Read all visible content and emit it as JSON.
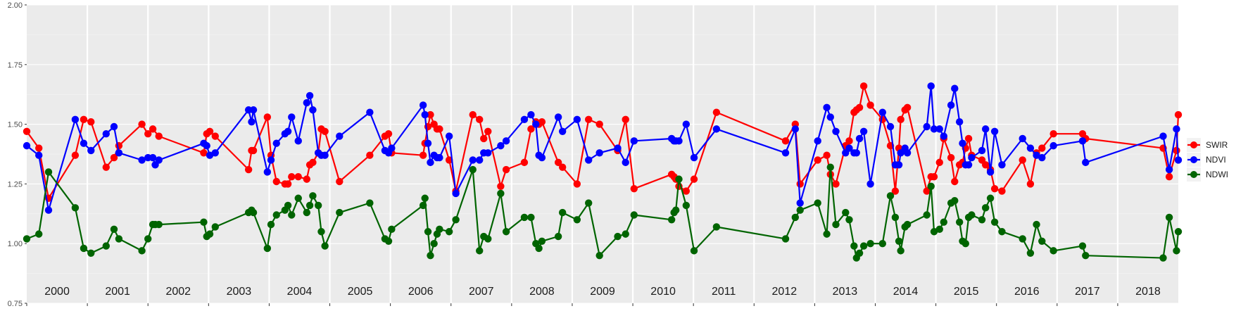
{
  "chart_data": {
    "type": "line",
    "title": "",
    "xlabel": "",
    "ylabel": "",
    "ylim": [
      0.75,
      2.0
    ],
    "xlim": [
      2000.0,
      2019.0
    ],
    "yticks": [
      "0.75",
      "1.00",
      "1.25",
      "1.50",
      "1.75",
      "2.00"
    ],
    "year_labels": [
      "2000",
      "2001",
      "2002",
      "2003",
      "2004",
      "2005",
      "2006",
      "2007",
      "2008",
      "2009",
      "2010",
      "2011",
      "2012",
      "2013",
      "2014",
      "2015",
      "2016",
      "2017",
      "2018"
    ],
    "grid": true,
    "legend_position": "right",
    "series": [
      {
        "name": "SWIR",
        "color": "#ff0000",
        "x": [
          2000.0,
          2000.2,
          2000.36,
          2000.8,
          2000.94,
          2001.06,
          2001.31,
          2001.44,
          2001.52,
          2001.9,
          2002.0,
          2002.08,
          2002.18,
          2002.92,
          2002.97,
          2003.02,
          2003.11,
          2003.66,
          2003.71,
          2003.74,
          2003.97,
          2004.03,
          2004.12,
          2004.26,
          2004.31,
          2004.37,
          2004.48,
          2004.62,
          2004.67,
          2004.72,
          2004.81,
          2004.86,
          2004.92,
          2005.16,
          2005.66,
          2005.91,
          2005.97,
          2006.02,
          2006.54,
          2006.57,
          2006.62,
          2006.66,
          2006.72,
          2006.77,
          2006.81,
          2006.97,
          2007.08,
          2007.36,
          2007.47,
          2007.54,
          2007.61,
          2007.82,
          2007.91,
          2008.21,
          2008.32,
          2008.4,
          2008.45,
          2008.5,
          2008.77,
          2008.84,
          2009.08,
          2009.27,
          2009.45,
          2009.75,
          2009.88,
          2010.02,
          2010.64,
          2010.68,
          2010.71,
          2010.76,
          2010.88,
          2011.01,
          2011.38,
          2012.52,
          2012.68,
          2012.76,
          2013.05,
          2013.2,
          2013.26,
          2013.35,
          2013.51,
          2013.57,
          2013.65,
          2013.69,
          2013.74,
          2013.81,
          2013.92,
          2014.12,
          2014.25,
          2014.33,
          2014.39,
          2014.42,
          2014.49,
          2014.53,
          2014.85,
          2014.92,
          2014.97,
          2015.06,
          2015.13,
          2015.25,
          2015.31,
          2015.39,
          2015.44,
          2015.49,
          2015.54,
          2015.59,
          2015.76,
          2015.82,
          2015.9,
          2015.97,
          2016.09,
          2016.43,
          2016.56,
          2016.66,
          2016.75,
          2016.94,
          2017.42,
          2017.47,
          2018.75,
          2018.85,
          2018.97,
          2019.0
        ],
        "y": [
          1.47,
          1.4,
          1.19,
          1.37,
          1.52,
          1.51,
          1.32,
          1.36,
          1.41,
          1.5,
          1.46,
          1.48,
          1.45,
          1.38,
          1.46,
          1.47,
          1.45,
          1.31,
          1.39,
          1.39,
          1.53,
          1.37,
          1.26,
          1.25,
          1.25,
          1.28,
          1.28,
          1.27,
          1.33,
          1.34,
          1.38,
          1.48,
          1.47,
          1.26,
          1.37,
          1.45,
          1.46,
          1.38,
          1.37,
          1.42,
          1.49,
          1.54,
          1.5,
          1.48,
          1.48,
          1.35,
          1.22,
          1.54,
          1.52,
          1.44,
          1.47,
          1.24,
          1.31,
          1.34,
          1.48,
          1.51,
          1.5,
          1.51,
          1.34,
          1.32,
          1.25,
          1.52,
          1.5,
          1.39,
          1.52,
          1.23,
          1.29,
          1.28,
          1.27,
          1.24,
          1.22,
          1.27,
          1.55,
          1.43,
          1.5,
          1.25,
          1.35,
          1.37,
          1.29,
          1.25,
          1.41,
          1.43,
          1.55,
          1.56,
          1.57,
          1.66,
          1.58,
          1.52,
          1.41,
          1.22,
          1.4,
          1.52,
          1.56,
          1.57,
          1.22,
          1.28,
          1.28,
          1.34,
          1.44,
          1.36,
          1.26,
          1.33,
          1.34,
          1.4,
          1.44,
          1.37,
          1.35,
          1.33,
          1.31,
          1.23,
          1.22,
          1.35,
          1.25,
          1.38,
          1.4,
          1.46,
          1.46,
          1.44,
          1.4,
          1.28,
          1.39,
          1.54
        ]
      },
      {
        "name": "NDVI",
        "color": "#0000ff",
        "x": [
          2000.0,
          2000.2,
          2000.36,
          2000.8,
          2000.94,
          2001.06,
          2001.31,
          2001.44,
          2001.52,
          2001.9,
          2002.0,
          2002.08,
          2002.12,
          2002.18,
          2002.92,
          2002.97,
          2003.02,
          2003.11,
          2003.66,
          2003.71,
          2003.74,
          2003.97,
          2004.03,
          2004.12,
          2004.26,
          2004.31,
          2004.37,
          2004.48,
          2004.62,
          2004.67,
          2004.72,
          2004.81,
          2004.86,
          2004.92,
          2005.16,
          2005.66,
          2005.91,
          2005.97,
          2006.02,
          2006.54,
          2006.57,
          2006.62,
          2006.66,
          2006.72,
          2006.77,
          2006.81,
          2006.97,
          2007.08,
          2007.36,
          2007.47,
          2007.54,
          2007.61,
          2007.82,
          2007.91,
          2008.21,
          2008.32,
          2008.4,
          2008.45,
          2008.5,
          2008.77,
          2008.84,
          2009.08,
          2009.27,
          2009.45,
          2009.75,
          2009.88,
          2010.02,
          2010.64,
          2010.68,
          2010.71,
          2010.76,
          2010.88,
          2011.01,
          2011.38,
          2012.52,
          2012.68,
          2012.76,
          2013.05,
          2013.2,
          2013.26,
          2013.35,
          2013.51,
          2013.57,
          2013.65,
          2013.69,
          2013.74,
          2013.81,
          2013.92,
          2014.12,
          2014.25,
          2014.33,
          2014.39,
          2014.42,
          2014.49,
          2014.53,
          2014.85,
          2014.92,
          2014.97,
          2015.06,
          2015.13,
          2015.25,
          2015.31,
          2015.39,
          2015.44,
          2015.49,
          2015.54,
          2015.59,
          2015.76,
          2015.82,
          2015.9,
          2015.97,
          2016.09,
          2016.43,
          2016.56,
          2016.66,
          2016.75,
          2016.94,
          2017.42,
          2017.47,
          2018.75,
          2018.85,
          2018.97,
          2019.0
        ],
        "y": [
          1.41,
          1.37,
          1.14,
          1.52,
          1.42,
          1.39,
          1.46,
          1.49,
          1.38,
          1.35,
          1.36,
          1.36,
          1.33,
          1.35,
          1.42,
          1.41,
          1.37,
          1.38,
          1.56,
          1.51,
          1.56,
          1.3,
          1.35,
          1.42,
          1.46,
          1.47,
          1.53,
          1.43,
          1.59,
          1.62,
          1.56,
          1.38,
          1.37,
          1.37,
          1.45,
          1.55,
          1.39,
          1.38,
          1.4,
          1.58,
          1.54,
          1.42,
          1.34,
          1.37,
          1.36,
          1.36,
          1.45,
          1.21,
          1.35,
          1.35,
          1.38,
          1.38,
          1.41,
          1.43,
          1.52,
          1.54,
          1.5,
          1.37,
          1.36,
          1.53,
          1.47,
          1.52,
          1.35,
          1.38,
          1.4,
          1.34,
          1.43,
          1.44,
          1.43,
          1.43,
          1.43,
          1.5,
          1.36,
          1.48,
          1.38,
          1.48,
          1.17,
          1.43,
          1.57,
          1.53,
          1.47,
          1.38,
          1.4,
          1.38,
          1.38,
          1.44,
          1.47,
          1.25,
          1.55,
          1.49,
          1.33,
          1.33,
          1.38,
          1.4,
          1.38,
          1.49,
          1.66,
          1.48,
          1.48,
          1.45,
          1.58,
          1.65,
          1.51,
          1.42,
          1.33,
          1.33,
          1.36,
          1.39,
          1.48,
          1.3,
          1.47,
          1.33,
          1.44,
          1.4,
          1.37,
          1.36,
          1.41,
          1.43,
          1.34,
          1.45,
          1.31,
          1.48,
          1.35
        ]
      },
      {
        "name": "NDWI",
        "color": "#006400",
        "x": [
          2000.0,
          2000.2,
          2000.36,
          2000.8,
          2000.94,
          2001.06,
          2001.31,
          2001.44,
          2001.52,
          2001.9,
          2002.0,
          2002.08,
          2002.12,
          2002.18,
          2002.92,
          2002.97,
          2003.02,
          2003.11,
          2003.66,
          2003.71,
          2003.74,
          2003.97,
          2004.03,
          2004.12,
          2004.26,
          2004.31,
          2004.37,
          2004.48,
          2004.62,
          2004.67,
          2004.72,
          2004.81,
          2004.86,
          2004.92,
          2005.16,
          2005.66,
          2005.91,
          2005.97,
          2006.02,
          2006.54,
          2006.57,
          2006.62,
          2006.66,
          2006.72,
          2006.77,
          2006.81,
          2006.97,
          2007.08,
          2007.36,
          2007.47,
          2007.54,
          2007.61,
          2007.82,
          2007.91,
          2008.21,
          2008.32,
          2008.4,
          2008.45,
          2008.5,
          2008.77,
          2008.84,
          2009.08,
          2009.27,
          2009.45,
          2009.75,
          2009.88,
          2010.02,
          2010.64,
          2010.68,
          2010.71,
          2010.76,
          2010.88,
          2011.01,
          2011.38,
          2012.52,
          2012.68,
          2012.76,
          2013.05,
          2013.2,
          2013.26,
          2013.35,
          2013.51,
          2013.57,
          2013.65,
          2013.69,
          2013.74,
          2013.81,
          2013.92,
          2014.12,
          2014.25,
          2014.33,
          2014.39,
          2014.42,
          2014.49,
          2014.53,
          2014.85,
          2014.92,
          2014.97,
          2015.06,
          2015.13,
          2015.25,
          2015.31,
          2015.39,
          2015.44,
          2015.49,
          2015.54,
          2015.59,
          2015.76,
          2015.82,
          2015.9,
          2015.97,
          2016.09,
          2016.43,
          2016.56,
          2016.66,
          2016.75,
          2016.94,
          2017.42,
          2017.47,
          2018.75,
          2018.85,
          2018.97,
          2019.0
        ],
        "y": [
          1.02,
          1.04,
          1.3,
          1.15,
          0.98,
          0.96,
          0.99,
          1.06,
          1.02,
          0.97,
          1.02,
          1.08,
          1.08,
          1.08,
          1.09,
          1.03,
          1.04,
          1.07,
          1.13,
          1.14,
          1.13,
          0.98,
          1.08,
          1.12,
          1.14,
          1.16,
          1.12,
          1.19,
          1.13,
          1.16,
          1.2,
          1.16,
          1.05,
          0.99,
          1.13,
          1.17,
          1.02,
          1.01,
          1.06,
          1.16,
          1.19,
          1.05,
          0.95,
          1.0,
          1.04,
          1.06,
          1.05,
          1.1,
          1.31,
          0.97,
          1.03,
          1.02,
          1.21,
          1.05,
          1.11,
          1.11,
          1.0,
          0.98,
          1.01,
          1.03,
          1.13,
          1.1,
          1.17,
          0.95,
          1.03,
          1.04,
          1.12,
          1.1,
          1.13,
          1.14,
          1.27,
          1.16,
          0.97,
          1.07,
          1.02,
          1.11,
          1.14,
          1.17,
          1.04,
          1.32,
          1.08,
          1.13,
          1.1,
          0.99,
          0.94,
          0.96,
          0.99,
          1.0,
          1.0,
          1.2,
          1.11,
          1.01,
          0.97,
          1.07,
          1.08,
          1.12,
          1.24,
          1.05,
          1.06,
          1.09,
          1.17,
          1.18,
          1.09,
          1.01,
          1.0,
          1.11,
          1.12,
          1.1,
          1.15,
          1.19,
          1.09,
          1.05,
          1.02,
          0.96,
          1.08,
          1.01,
          0.97,
          0.99,
          0.95,
          0.94,
          1.11,
          0.97,
          1.05
        ]
      }
    ]
  }
}
